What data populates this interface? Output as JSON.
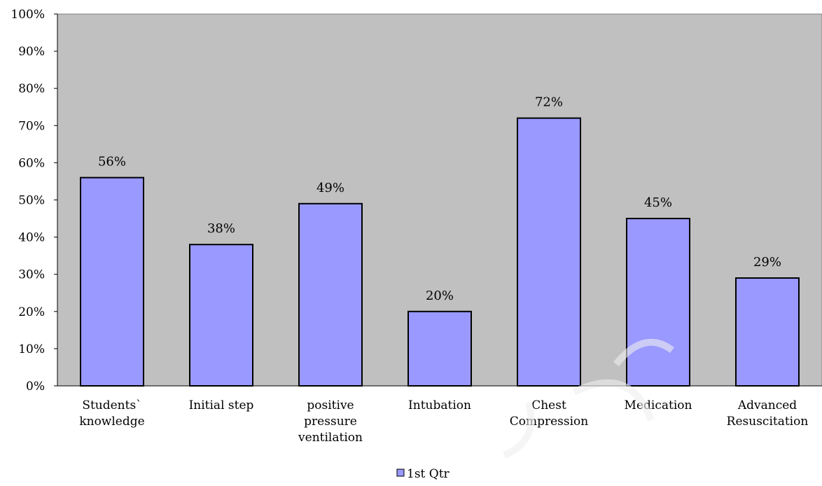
{
  "chart_data": {
    "type": "bar",
    "categories": [
      [
        "Students`",
        "knowledge"
      ],
      [
        "Initial step"
      ],
      [
        "positive",
        "pressure",
        "ventilation"
      ],
      [
        "Intubation"
      ],
      [
        "Chest",
        "Compression"
      ],
      [
        "Medication"
      ],
      [
        "Advanced",
        "Resuscitation"
      ]
    ],
    "series": [
      {
        "name": "1st Qtr",
        "values": [
          56,
          38,
          49,
          20,
          72,
          45,
          29
        ],
        "data_labels": [
          "56%",
          "38%",
          "49%",
          "20%",
          "72%",
          "45%",
          "29%"
        ],
        "color": "#9999ff"
      }
    ],
    "y_ticks": [
      "0%",
      "10%",
      "20%",
      "30%",
      "40%",
      "50%",
      "60%",
      "70%",
      "80%",
      "90%",
      "100%"
    ],
    "ylim": [
      0,
      100
    ],
    "grid": false,
    "plot_background": "#c0c0c0",
    "bar_outline": "#000000",
    "legend_position": "bottom"
  }
}
